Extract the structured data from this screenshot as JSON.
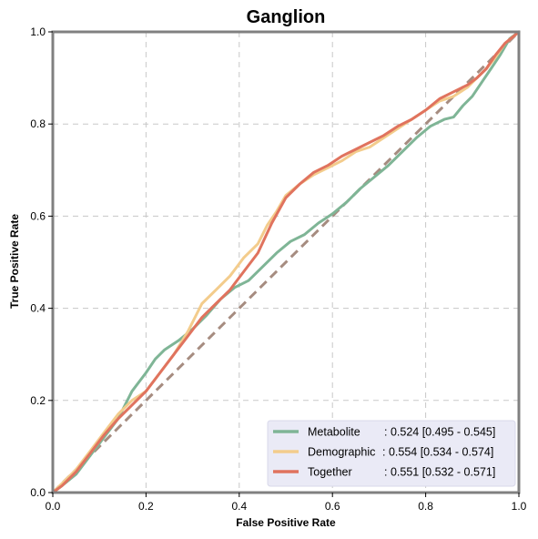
{
  "chart_data": {
    "type": "line",
    "title": "Ganglion",
    "xlabel": "False Positive Rate",
    "ylabel": "True Positive Rate",
    "xlim": [
      0,
      1
    ],
    "ylim": [
      0,
      1
    ],
    "x_ticks": [
      "0.0",
      "0.2",
      "0.4",
      "0.6",
      "0.8",
      "1.0"
    ],
    "y_ticks": [
      "0.0",
      "0.2",
      "0.4",
      "0.6",
      "0.8",
      "1.0"
    ],
    "grid": true,
    "legend_position": "bottom-right",
    "diagonal": {
      "points": [
        [
          0,
          0
        ],
        [
          1,
          1
        ]
      ],
      "color": "#a68c80"
    },
    "series": [
      {
        "name": "Metabolite",
        "auc_text": ": 0.524 [0.495 - 0.545]",
        "color": "#7fb596",
        "points": [
          [
            0,
            0
          ],
          [
            0.02,
            0.015
          ],
          [
            0.05,
            0.04
          ],
          [
            0.08,
            0.08
          ],
          [
            0.11,
            0.12
          ],
          [
            0.14,
            0.16
          ],
          [
            0.17,
            0.22
          ],
          [
            0.2,
            0.26
          ],
          [
            0.22,
            0.29
          ],
          [
            0.24,
            0.31
          ],
          [
            0.27,
            0.33
          ],
          [
            0.3,
            0.355
          ],
          [
            0.33,
            0.385
          ],
          [
            0.36,
            0.42
          ],
          [
            0.39,
            0.445
          ],
          [
            0.42,
            0.46
          ],
          [
            0.45,
            0.49
          ],
          [
            0.48,
            0.52
          ],
          [
            0.51,
            0.545
          ],
          [
            0.54,
            0.56
          ],
          [
            0.57,
            0.585
          ],
          [
            0.6,
            0.605
          ],
          [
            0.63,
            0.63
          ],
          [
            0.66,
            0.66
          ],
          [
            0.69,
            0.685
          ],
          [
            0.72,
            0.71
          ],
          [
            0.75,
            0.74
          ],
          [
            0.78,
            0.77
          ],
          [
            0.81,
            0.795
          ],
          [
            0.84,
            0.81
          ],
          [
            0.86,
            0.815
          ],
          [
            0.88,
            0.84
          ],
          [
            0.9,
            0.86
          ],
          [
            0.92,
            0.89
          ],
          [
            0.94,
            0.92
          ],
          [
            0.96,
            0.95
          ],
          [
            0.98,
            0.985
          ],
          [
            1,
            1
          ]
        ]
      },
      {
        "name": "Demographic",
        "auc_text": ": 0.554 [0.534 - 0.574]",
        "color": "#f3cc8c",
        "points": [
          [
            0,
            0
          ],
          [
            0.02,
            0.02
          ],
          [
            0.05,
            0.05
          ],
          [
            0.08,
            0.09
          ],
          [
            0.11,
            0.13
          ],
          [
            0.14,
            0.17
          ],
          [
            0.17,
            0.2
          ],
          [
            0.2,
            0.22
          ],
          [
            0.23,
            0.26
          ],
          [
            0.26,
            0.3
          ],
          [
            0.29,
            0.35
          ],
          [
            0.32,
            0.41
          ],
          [
            0.35,
            0.44
          ],
          [
            0.38,
            0.47
          ],
          [
            0.41,
            0.51
          ],
          [
            0.44,
            0.54
          ],
          [
            0.46,
            0.58
          ],
          [
            0.48,
            0.61
          ],
          [
            0.5,
            0.645
          ],
          [
            0.53,
            0.67
          ],
          [
            0.56,
            0.69
          ],
          [
            0.59,
            0.705
          ],
          [
            0.62,
            0.72
          ],
          [
            0.65,
            0.74
          ],
          [
            0.68,
            0.75
          ],
          [
            0.71,
            0.77
          ],
          [
            0.74,
            0.79
          ],
          [
            0.77,
            0.81
          ],
          [
            0.8,
            0.83
          ],
          [
            0.83,
            0.85
          ],
          [
            0.86,
            0.86
          ],
          [
            0.89,
            0.88
          ],
          [
            0.91,
            0.9
          ],
          [
            0.93,
            0.92
          ],
          [
            0.95,
            0.945
          ],
          [
            0.97,
            0.975
          ],
          [
            1,
            1
          ]
        ]
      },
      {
        "name": "Together",
        "auc_text": ": 0.551 [0.532 - 0.571]",
        "color": "#e0735e",
        "points": [
          [
            0,
            0
          ],
          [
            0.02,
            0.015
          ],
          [
            0.05,
            0.045
          ],
          [
            0.08,
            0.085
          ],
          [
            0.11,
            0.125
          ],
          [
            0.14,
            0.16
          ],
          [
            0.17,
            0.19
          ],
          [
            0.2,
            0.22
          ],
          [
            0.23,
            0.26
          ],
          [
            0.26,
            0.3
          ],
          [
            0.29,
            0.34
          ],
          [
            0.32,
            0.38
          ],
          [
            0.35,
            0.41
          ],
          [
            0.38,
            0.44
          ],
          [
            0.41,
            0.48
          ],
          [
            0.44,
            0.52
          ],
          [
            0.47,
            0.585
          ],
          [
            0.5,
            0.64
          ],
          [
            0.53,
            0.67
          ],
          [
            0.56,
            0.695
          ],
          [
            0.59,
            0.71
          ],
          [
            0.62,
            0.73
          ],
          [
            0.65,
            0.745
          ],
          [
            0.68,
            0.76
          ],
          [
            0.71,
            0.775
          ],
          [
            0.74,
            0.795
          ],
          [
            0.77,
            0.81
          ],
          [
            0.8,
            0.83
          ],
          [
            0.83,
            0.855
          ],
          [
            0.86,
            0.87
          ],
          [
            0.89,
            0.885
          ],
          [
            0.91,
            0.9
          ],
          [
            0.93,
            0.92
          ],
          [
            0.95,
            0.95
          ],
          [
            0.97,
            0.975
          ],
          [
            1,
            1
          ]
        ]
      }
    ]
  }
}
